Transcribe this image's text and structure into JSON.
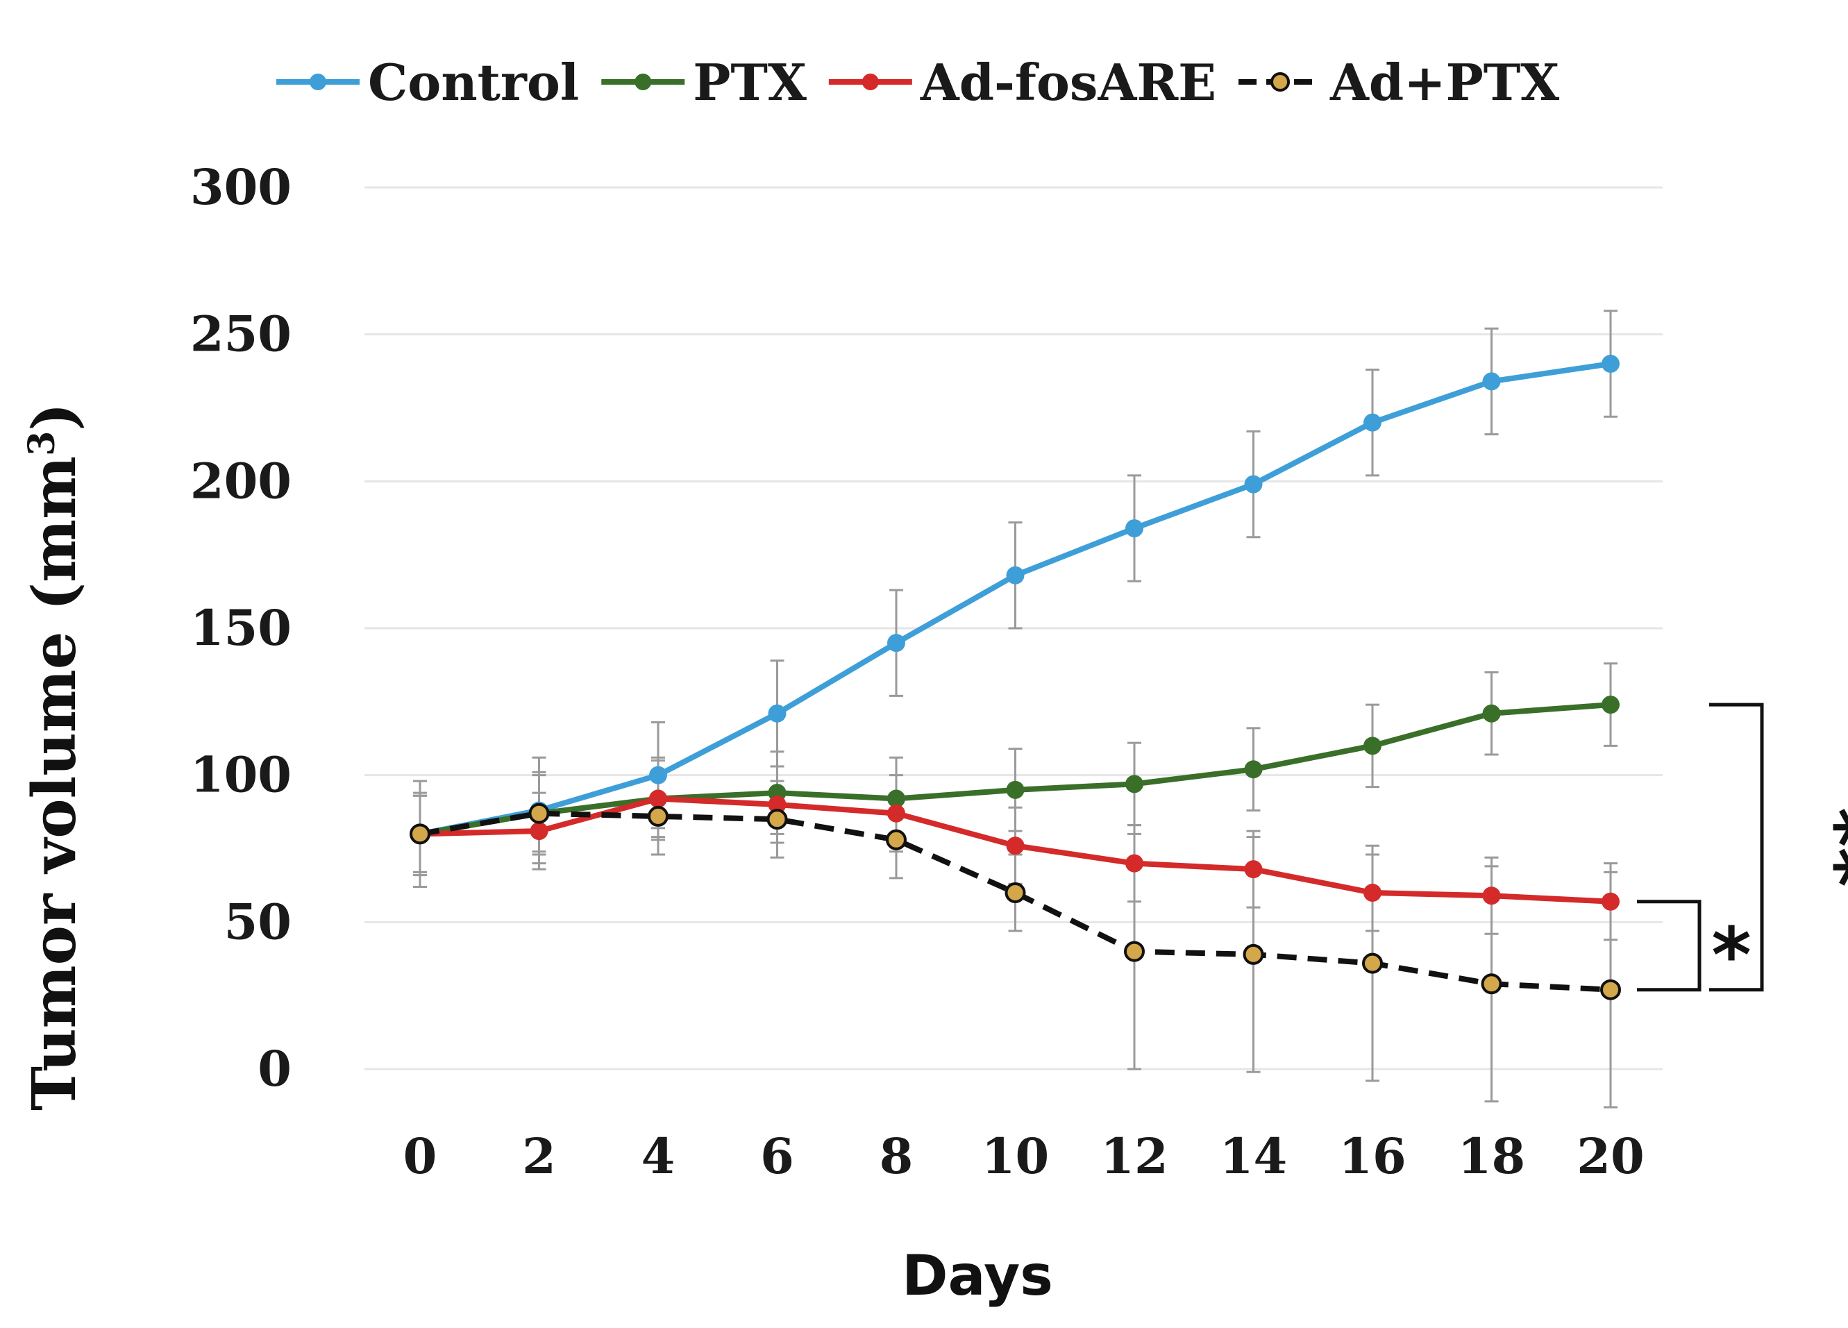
{
  "chart_data": {
    "type": "line",
    "title": "",
    "xlabel": "Days",
    "ylabel": "Tumor volume (mm",
    "ylabel_superscript": "3",
    "ylabel_close": ")",
    "x": [
      0,
      2,
      4,
      6,
      8,
      10,
      12,
      14,
      16,
      18,
      20
    ],
    "x_tick_labels": [
      "0",
      "2",
      "4",
      "6",
      "8",
      "10",
      "12",
      "14",
      "16",
      "18",
      "20"
    ],
    "ylim": [
      0,
      300
    ],
    "y_tick_labels": [
      "0",
      "50",
      "100",
      "150",
      "200",
      "250",
      "300"
    ],
    "grid": true,
    "legend_position": "top",
    "series": [
      {
        "name": "Control",
        "color": "#3e9fd8",
        "dashed": false,
        "values": [
          80,
          88,
          100,
          121,
          145,
          168,
          184,
          199,
          220,
          234,
          240
        ],
        "errors": [
          18,
          18,
          18,
          18,
          18,
          18,
          18,
          18,
          18,
          18,
          18
        ]
      },
      {
        "name": "PTX",
        "color": "#3a6f2a",
        "dashed": false,
        "values": [
          80,
          87,
          92,
          94,
          92,
          95,
          97,
          102,
          110,
          121,
          124
        ],
        "errors": [
          14,
          14,
          14,
          14,
          14,
          14,
          14,
          14,
          14,
          14,
          14
        ]
      },
      {
        "name": "Ad-fosARE",
        "color": "#d42a2a",
        "dashed": false,
        "values": [
          80,
          81,
          92,
          90,
          87,
          76,
          70,
          68,
          60,
          59,
          57
        ],
        "errors": [
          13,
          13,
          13,
          13,
          13,
          13,
          13,
          13,
          13,
          13,
          13
        ]
      },
      {
        "name": "Ad+PTX",
        "color": "#111111",
        "marker_fill": "#d4a84a",
        "dashed": true,
        "values": [
          80,
          87,
          86,
          85,
          78,
          60,
          40,
          39,
          36,
          29,
          27
        ],
        "errors": [
          13,
          13,
          13,
          13,
          13,
          13,
          40,
          40,
          40,
          40,
          40
        ]
      }
    ],
    "annotations": [
      {
        "text": "**",
        "between": [
          "PTX",
          "Ad+PTX"
        ]
      },
      {
        "text": "*",
        "between": [
          "Ad-fosARE",
          "Ad+PTX"
        ]
      }
    ]
  }
}
